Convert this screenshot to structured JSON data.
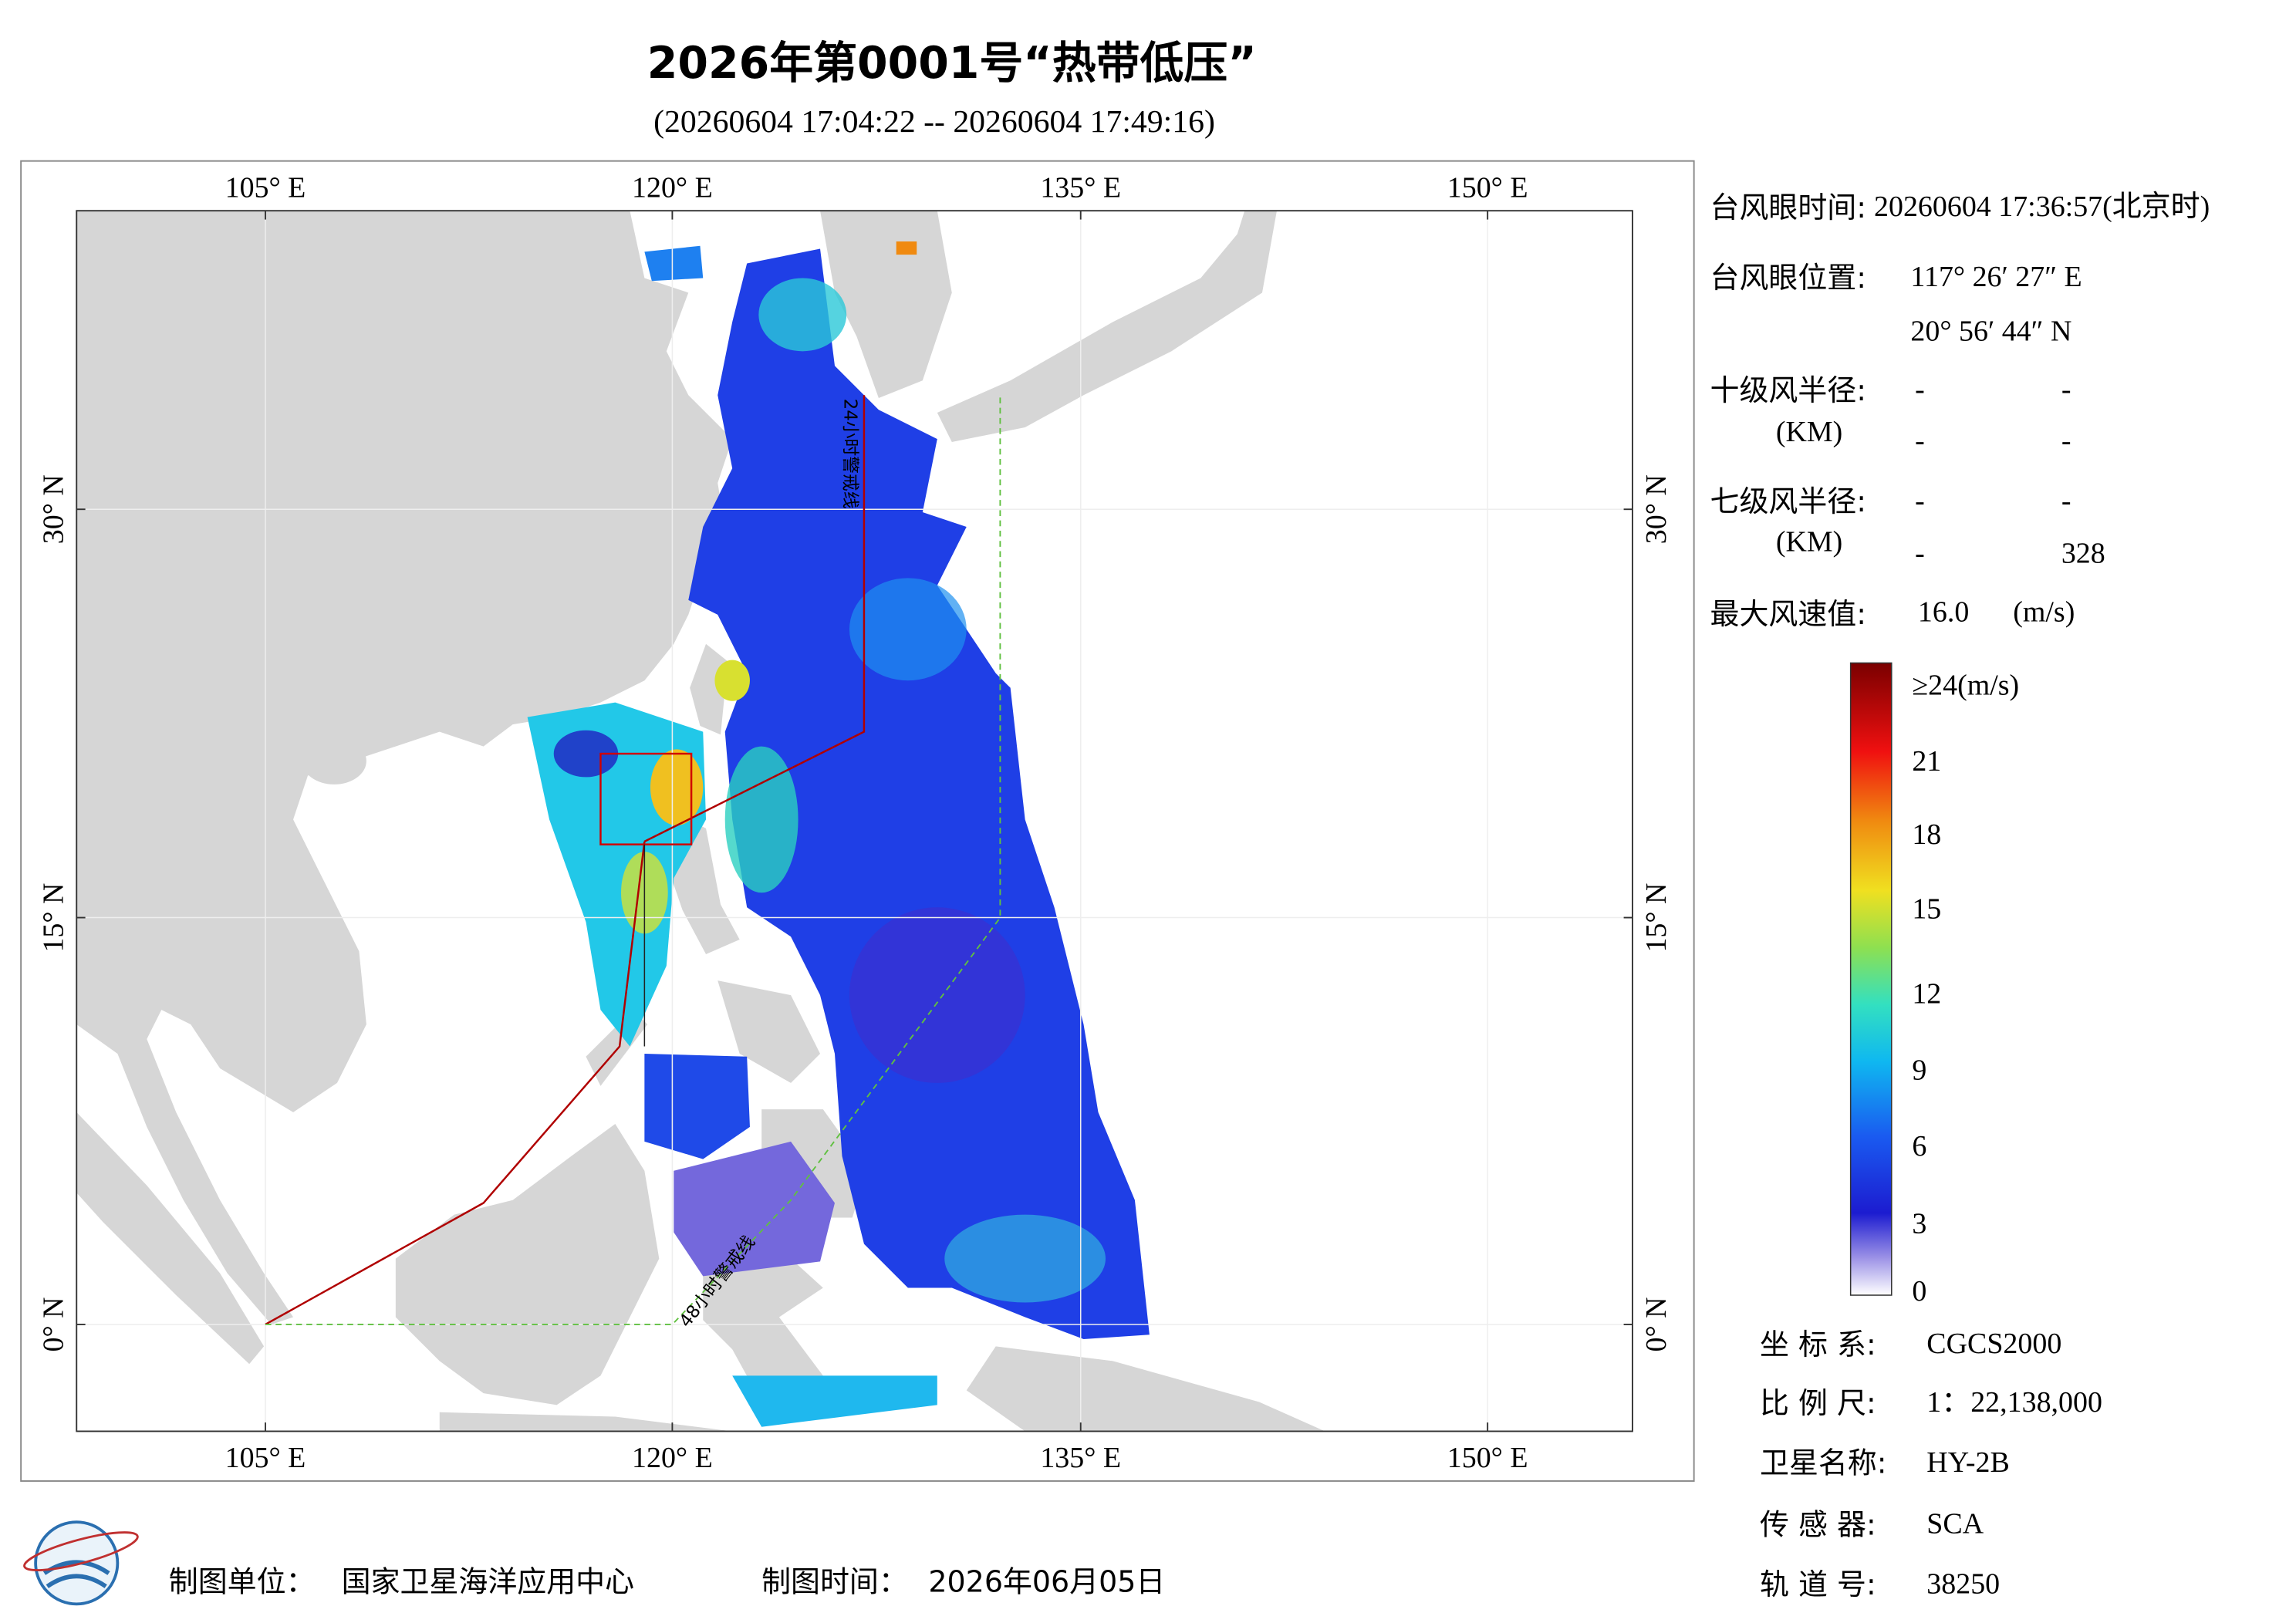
{
  "header": {
    "title": "2026年第0001号“热带低压”",
    "subtitle": "(20260604 17:04:22 -- 20260604 17:49:16)"
  },
  "map": {
    "lon_labels": [
      "105° E",
      "120° E",
      "135° E",
      "150° E"
    ],
    "lat_labels": [
      "30° N",
      "15° N",
      "0° N"
    ],
    "annotations": [
      "24小时警戒线",
      "48小时警戒线"
    ]
  },
  "info": {
    "eye_time": {
      "label": "台风眼时间:",
      "value": "20260604 17:36:57(北京时)"
    },
    "eye_position": {
      "label": "台风眼位置:",
      "lon": "117° 26′ 27″ E",
      "lat": "20° 56′ 44″ N"
    },
    "r10": {
      "label": "十级风半径:",
      "unit": "(KM)",
      "values": [
        "-",
        "-",
        "-",
        "-"
      ]
    },
    "r7": {
      "label": "七级风半径:",
      "unit": "(KM)",
      "values": [
        "-",
        "-",
        "-",
        "328"
      ]
    },
    "max_wind": {
      "label": "最大风速值:",
      "value": "16.0",
      "unit": "(m/s)"
    }
  },
  "colorbar": {
    "labels": [
      "≥24(m/s)",
      "21",
      "18",
      "15",
      "12",
      "9",
      "6",
      "3",
      "0"
    ]
  },
  "meta": [
    {
      "label": "坐 标 系:",
      "value": "CGCS2000"
    },
    {
      "label": "比 例 尺:",
      "value": "1：22,138,000"
    },
    {
      "label": "卫星名称:",
      "value": "HY-2B"
    },
    {
      "label": "传 感 器:",
      "value": "SCA"
    },
    {
      "label": "轨 道 号:",
      "value": "38250"
    }
  ],
  "footer": {
    "unit_label": "制图单位：",
    "unit": "国家卫星海洋应用中心",
    "time_label": "制图时间：",
    "time": "2026年06月05日"
  }
}
